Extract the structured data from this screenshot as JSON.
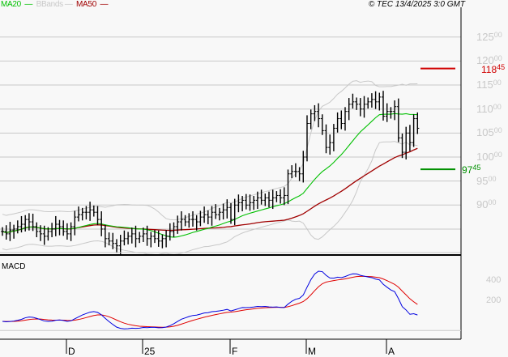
{
  "legend": {
    "ma20": "MA20",
    "bbands": "BBands",
    "ma50": "MA50"
  },
  "stamp": "© TEC 13/4/2025 3:0 GMT",
  "colors": {
    "ma20": "#00c000",
    "bbands": "#c8c8c8",
    "ma50": "#a00000",
    "macd": "#0000e0",
    "signal": "#e00000",
    "resistance": "#d00000",
    "support": "#009000"
  },
  "chart_data": [
    {
      "type": "ohlc",
      "title": "",
      "y_ticks": [
        {
          "main": "125",
          "sub": "00",
          "value": 12500
        },
        {
          "main": "120",
          "sub": "00",
          "value": 12000
        },
        {
          "main": "115",
          "sub": "00",
          "value": 11500
        },
        {
          "main": "110",
          "sub": "00",
          "value": 11000
        },
        {
          "main": "105",
          "sub": "00",
          "value": 10500
        },
        {
          "main": "100",
          "sub": "00",
          "value": 10000
        },
        {
          "main": "95",
          "sub": "00",
          "value": 9500
        },
        {
          "main": "90",
          "sub": "00",
          "value": 9000
        }
      ],
      "ylim": [
        8050,
        13000
      ],
      "x_ticks": [
        {
          "label": "D",
          "index": 17
        },
        {
          "label": "25",
          "index": 37
        },
        {
          "label": "F",
          "index": 60
        },
        {
          "label": "M",
          "index": 80
        },
        {
          "label": "A",
          "index": 101
        }
      ],
      "close": [
        8450,
        8400,
        8480,
        8500,
        8550,
        8600,
        8700,
        8650,
        8550,
        8450,
        8400,
        8350,
        8450,
        8500,
        8600,
        8550,
        8450,
        8400,
        8550,
        8750,
        8800,
        8850,
        8850,
        8900,
        8850,
        8700,
        8500,
        8300,
        8250,
        8200,
        8150,
        8250,
        8300,
        8350,
        8400,
        8300,
        8350,
        8400,
        8300,
        8350,
        8300,
        8250,
        8300,
        8350,
        8450,
        8550,
        8650,
        8700,
        8650,
        8700,
        8700,
        8650,
        8750,
        8800,
        8750,
        8850,
        8800,
        8850,
        8900,
        8950,
        8700,
        9000,
        9050,
        9100,
        9000,
        9050,
        9100,
        9150,
        9100,
        9150,
        9100,
        9150,
        9200,
        9150,
        9200,
        9650,
        9700,
        9700,
        9650,
        10000,
        10700,
        10900,
        10950,
        10800,
        10550,
        10200,
        10300,
        10600,
        10800,
        10700,
        10950,
        11100,
        11150,
        11100,
        11000,
        11100,
        11150,
        11200,
        11150,
        11250,
        10850,
        10950,
        10950,
        11050,
        10400,
        10100,
        10500,
        10300,
        10800,
        10600
      ],
      "overlays": [
        "MA20",
        "BBands",
        "MA50"
      ],
      "levels": [
        {
          "name": "resistance",
          "value": 11845,
          "main": "118",
          "sub": "45"
        },
        {
          "name": "support",
          "value": 9745,
          "main": "97",
          "sub": "45"
        }
      ]
    },
    {
      "type": "line",
      "title": "MACD",
      "y_ticks": [
        {
          "label": "400",
          "value": 400
        },
        {
          "label": "200",
          "value": 200
        }
      ],
      "series": [
        "MACD",
        "Signal"
      ]
    }
  ]
}
